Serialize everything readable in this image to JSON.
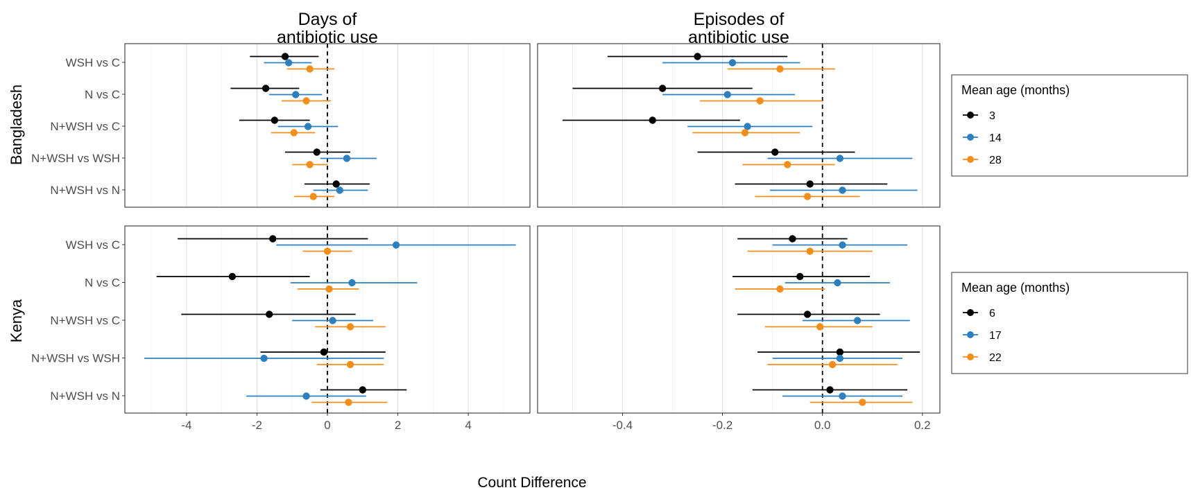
{
  "chart_data": {
    "type": "forest",
    "xlabel": "Count Difference",
    "columns": [
      {
        "title_line1": "Days of",
        "title_line2": "antibiotic use",
        "xlim": [
          -5.75,
          5.75
        ],
        "ticks": [
          -4,
          -2,
          0,
          2,
          4
        ],
        "tick_labels": [
          "-4",
          "-2",
          "0",
          "2",
          "4"
        ],
        "minor_ticks": [
          -5,
          -3,
          -1,
          1,
          3,
          5
        ]
      },
      {
        "title_line1": "Episodes of",
        "title_line2": "antibiotic use",
        "xlim": [
          -0.57,
          0.235
        ],
        "ticks": [
          -0.4,
          -0.2,
          0.0,
          0.2
        ],
        "tick_labels": [
          "-0.4",
          "-0.2",
          "0.0",
          "0.2"
        ],
        "minor_ticks": [
          -0.5,
          -0.3,
          -0.1,
          0.1
        ]
      }
    ],
    "rows": [
      {
        "strip": "Bangladesh",
        "legend": {
          "title": "Mean age (months)",
          "series": [
            {
              "name": "3",
              "color": "#000000"
            },
            {
              "name": "14",
              "color": "#2e7fbd"
            },
            {
              "name": "28",
              "color": "#f28e1c"
            }
          ]
        },
        "categories": [
          "WSH vs C",
          "N vs C",
          "N+WSH vs C",
          "N+WSH vs WSH",
          "N+WSH vs N"
        ],
        "panels": [
          [
            [
              {
                "est": -1.2,
                "lo": -2.2,
                "hi": -0.25
              },
              {
                "est": -1.1,
                "lo": -1.8,
                "hi": -0.45
              },
              {
                "est": -0.5,
                "lo": -1.15,
                "hi": 0.2
              }
            ],
            [
              {
                "est": -1.75,
                "lo": -2.75,
                "hi": -0.8
              },
              {
                "est": -0.9,
                "lo": -1.65,
                "hi": -0.15
              },
              {
                "est": -0.6,
                "lo": -1.3,
                "hi": 0.1
              }
            ],
            [
              {
                "est": -1.5,
                "lo": -2.5,
                "hi": -0.5
              },
              {
                "est": -0.55,
                "lo": -1.4,
                "hi": 0.3
              },
              {
                "est": -0.95,
                "lo": -1.6,
                "hi": -0.35
              }
            ],
            [
              {
                "est": -0.3,
                "lo": -1.2,
                "hi": 0.65
              },
              {
                "est": 0.55,
                "lo": -0.2,
                "hi": 1.4
              },
              {
                "est": -0.5,
                "lo": -1.0,
                "hi": 0.0
              }
            ],
            [
              {
                "est": 0.25,
                "lo": -0.65,
                "hi": 1.2
              },
              {
                "est": 0.35,
                "lo": -0.4,
                "hi": 1.15
              },
              {
                "est": -0.4,
                "lo": -0.95,
                "hi": 0.2
              }
            ]
          ],
          [
            [
              {
                "est": -0.25,
                "lo": -0.43,
                "hi": -0.07
              },
              {
                "est": -0.18,
                "lo": -0.32,
                "hi": -0.045
              },
              {
                "est": -0.085,
                "lo": -0.19,
                "hi": 0.025
              }
            ],
            [
              {
                "est": -0.32,
                "lo": -0.5,
                "hi": -0.14
              },
              {
                "est": -0.19,
                "lo": -0.32,
                "hi": -0.055
              },
              {
                "est": -0.125,
                "lo": -0.245,
                "hi": 0.0
              }
            ],
            [
              {
                "est": -0.34,
                "lo": -0.52,
                "hi": -0.165
              },
              {
                "est": -0.15,
                "lo": -0.27,
                "hi": -0.02
              },
              {
                "est": -0.155,
                "lo": -0.26,
                "hi": -0.045
              }
            ],
            [
              {
                "est": -0.095,
                "lo": -0.25,
                "hi": 0.065
              },
              {
                "est": 0.035,
                "lo": -0.11,
                "hi": 0.18
              },
              {
                "est": -0.07,
                "lo": -0.16,
                "hi": 0.025
              }
            ],
            [
              {
                "est": -0.025,
                "lo": -0.175,
                "hi": 0.13
              },
              {
                "est": 0.04,
                "lo": -0.105,
                "hi": 0.19
              },
              {
                "est": -0.03,
                "lo": -0.135,
                "hi": 0.075
              }
            ]
          ]
        ]
      },
      {
        "strip": "Kenya",
        "legend": {
          "title": "Mean age (months)",
          "series": [
            {
              "name": "6",
              "color": "#000000"
            },
            {
              "name": "17",
              "color": "#2e7fbd"
            },
            {
              "name": "22",
              "color": "#f28e1c"
            }
          ]
        },
        "categories": [
          "WSH vs C",
          "N vs C",
          "N+WSH vs C",
          "N+WSH vs WSH",
          "N+WSH vs N"
        ],
        "panels": [
          [
            [
              {
                "est": -1.55,
                "lo": -4.25,
                "hi": 1.15
              },
              {
                "est": 1.95,
                "lo": -1.45,
                "hi": 5.35
              },
              {
                "est": 0.0,
                "lo": -0.7,
                "hi": 0.7
              }
            ],
            [
              {
                "est": -2.7,
                "lo": -4.85,
                "hi": -0.5
              },
              {
                "est": 0.7,
                "lo": -1.05,
                "hi": 2.55
              },
              {
                "est": 0.05,
                "lo": -0.85,
                "hi": 0.9
              }
            ],
            [
              {
                "est": -1.65,
                "lo": -4.15,
                "hi": 0.8
              },
              {
                "est": 0.15,
                "lo": -1.0,
                "hi": 1.3
              },
              {
                "est": 0.65,
                "lo": -0.35,
                "hi": 1.65
              }
            ],
            [
              {
                "est": -0.1,
                "lo": -1.9,
                "hi": 1.65
              },
              {
                "est": -1.8,
                "lo": -5.2,
                "hi": 1.6
              },
              {
                "est": 0.65,
                "lo": -0.3,
                "hi": 1.6
              }
            ],
            [
              {
                "est": 1.0,
                "lo": -0.2,
                "hi": 2.25
              },
              {
                "est": -0.6,
                "lo": -2.3,
                "hi": 1.1
              },
              {
                "est": 0.6,
                "lo": -0.45,
                "hi": 1.7
              }
            ]
          ],
          [
            [
              {
                "est": -0.06,
                "lo": -0.17,
                "hi": 0.05
              },
              {
                "est": 0.04,
                "lo": -0.1,
                "hi": 0.17
              },
              {
                "est": -0.025,
                "lo": -0.15,
                "hi": 0.1
              }
            ],
            [
              {
                "est": -0.045,
                "lo": -0.18,
                "hi": 0.095
              },
              {
                "est": 0.03,
                "lo": -0.075,
                "hi": 0.135
              },
              {
                "est": -0.085,
                "lo": -0.175,
                "hi": 0.005
              }
            ],
            [
              {
                "est": -0.03,
                "lo": -0.17,
                "hi": 0.115
              },
              {
                "est": 0.07,
                "lo": -0.04,
                "hi": 0.175
              },
              {
                "est": -0.005,
                "lo": -0.115,
                "hi": 0.1
              }
            ],
            [
              {
                "est": 0.035,
                "lo": -0.13,
                "hi": 0.195
              },
              {
                "est": 0.035,
                "lo": -0.1,
                "hi": 0.16
              },
              {
                "est": 0.02,
                "lo": -0.11,
                "hi": 0.15
              }
            ],
            [
              {
                "est": 0.015,
                "lo": -0.14,
                "hi": 0.17
              },
              {
                "est": 0.04,
                "lo": -0.08,
                "hi": 0.16
              },
              {
                "est": 0.08,
                "lo": -0.025,
                "hi": 0.18
              }
            ]
          ]
        ]
      }
    ]
  }
}
